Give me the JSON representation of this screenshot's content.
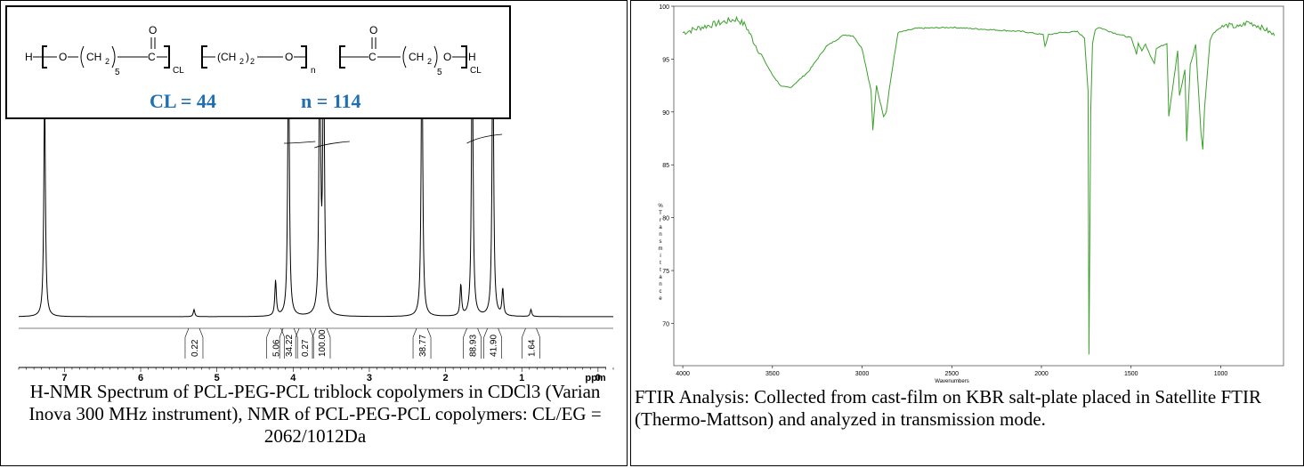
{
  "left_panel": {
    "formula": {
      "cl_label": "CL = 44",
      "n_label": "n = 114",
      "highlight_color": "#1f6fb3",
      "text_h_left": "H",
      "text_o": "O",
      "text_ch2": "CH",
      "text_sub2": "2",
      "text_sub5": "5",
      "text_c": "C",
      "text_cl": "CL",
      "text_ch2_2": "(CH",
      "text_ch2_2_close": ")",
      "text_n": "n",
      "text_h_right": "H"
    },
    "caption": "H-NMR Spectrum of PCL-PEG-PCL triblock copolymers in CDCl3 (Varian Inova 300 MHz instrument), NMR of PCL-PEG-PCL copolymers: CL/EG = 2062/1012Da"
  },
  "right_panel": {
    "caption": "FTIR Analysis: Collected from cast-film on KBR salt-plate placed in Satellite FTIR (Thermo-Mattson) and analyzed in transmission mode."
  },
  "chart_data": [
    {
      "type": "line",
      "xlabel": "ppm",
      "ylabel": "",
      "xlim": [
        7.6,
        -0.2
      ],
      "x_ticks": [
        "7",
        "6",
        "5",
        "4",
        "3",
        "2",
        "1",
        "0",
        "ppm"
      ],
      "peaks_ppm": [
        7.26,
        5.3,
        4.23,
        4.06,
        3.65,
        3.6,
        2.31,
        1.8,
        1.65,
        1.38,
        1.25,
        0.88
      ],
      "integrals": [
        {
          "label": "0.22",
          "ppm": 5.3
        },
        {
          "label": "5.06",
          "ppm": 4.23
        },
        {
          "label": "34.22",
          "ppm": 4.06
        },
        {
          "label": "0.27",
          "ppm": 3.85
        },
        {
          "label": "100.00",
          "ppm": 3.63
        },
        {
          "label": "38.77",
          "ppm": 2.31
        },
        {
          "label": "88.93",
          "ppm": 1.65
        },
        {
          "label": "41.90",
          "ppm": 1.38
        },
        {
          "label": "1.64",
          "ppm": 0.88
        }
      ],
      "line_color": "#000000"
    },
    {
      "type": "line",
      "xlabel": "Wavenumbers",
      "ylabel": "%Transmittance",
      "xlim": [
        4050,
        650
      ],
      "ylim": [
        66,
        100
      ],
      "x_ticks": [
        "4000",
        "3500",
        "3000",
        "2500",
        "2000",
        "1500",
        "1000"
      ],
      "y_ticks": [
        "100",
        "95",
        "90",
        "85",
        "80",
        "75",
        "70"
      ],
      "line_color": "#3aa02a",
      "series": [
        {
          "x": [
            4000,
            3900,
            3800,
            3700,
            3650,
            3600,
            3500,
            3450,
            3400,
            3300,
            3200,
            3100,
            3050,
            3000,
            2950,
            2940,
            2920,
            2900,
            2880,
            2865,
            2850,
            2800,
            2700,
            2500,
            2300,
            2100,
            1990,
            1980,
            1960,
            1900,
            1800,
            1760,
            1740,
            1735,
            1725,
            1715,
            1700,
            1680,
            1600,
            1500,
            1470,
            1460,
            1440,
            1420,
            1400,
            1370,
            1360,
            1300,
            1290,
            1240,
            1230,
            1200,
            1190,
            1170,
            1160,
            1140,
            1110,
            1100,
            1090,
            1060,
            1040,
            1000,
            960,
            900,
            850,
            800,
            750,
            700
          ],
          "y": [
            97.5,
            98.0,
            98.4,
            98.8,
            98.2,
            96.5,
            93.5,
            92.4,
            92.3,
            93.8,
            96.2,
            97.3,
            97.2,
            96.0,
            92.0,
            88.3,
            92.5,
            91.0,
            89.6,
            90.0,
            92.0,
            97.5,
            97.9,
            98.0,
            97.8,
            97.6,
            97.3,
            96.2,
            97.3,
            97.5,
            97.6,
            97.0,
            92.0,
            67.0,
            90.0,
            96.5,
            97.8,
            98.0,
            97.5,
            97.0,
            95.5,
            96.5,
            95.8,
            96.4,
            95.6,
            94.6,
            96.0,
            96.5,
            89.6,
            95.8,
            91.5,
            94.0,
            87.2,
            94.5,
            95.0,
            96.4,
            88.0,
            86.5,
            90.5,
            96.8,
            97.5,
            98.0,
            98.2,
            98.0,
            98.5,
            98.2,
            97.8,
            97.2
          ]
        }
      ]
    }
  ]
}
